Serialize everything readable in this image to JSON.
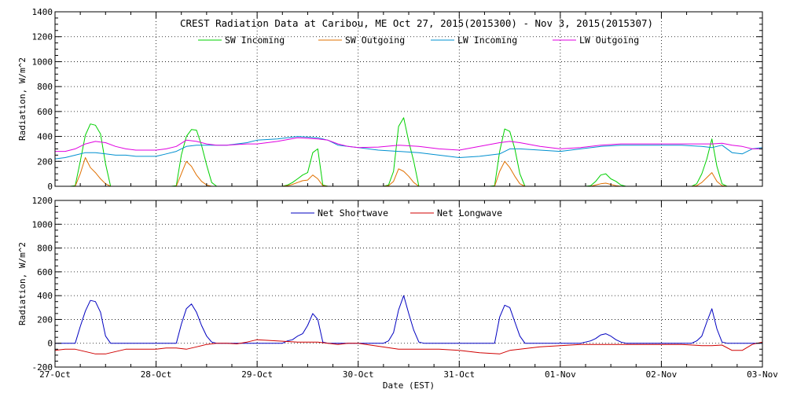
{
  "chart_data": [
    {
      "type": "line",
      "title": "CREST Radiation Data at Caribou, ME   Oct 27, 2015(2015300) - Nov  3, 2015(2015307)",
      "xlabel": "",
      "ylabel": "Radiation, W/m^2",
      "ylim": [
        0,
        1400
      ],
      "yticks": [
        "0",
        "200",
        "400",
        "600",
        "800",
        "1000",
        "1200",
        "1400"
      ],
      "xlim": [
        "27-Oct",
        "03-Nov"
      ],
      "grid": true,
      "legend_position": "top",
      "series": [
        {
          "name": "SW Incoming",
          "color": "#00d000",
          "x": [
            0.0,
            0.1,
            0.15,
            0.2,
            0.25,
            0.3,
            0.35,
            0.4,
            0.45,
            0.5,
            0.55,
            0.6,
            0.65,
            0.7,
            1.0,
            1.1,
            1.15,
            1.2,
            1.25,
            1.3,
            1.35,
            1.4,
            1.45,
            1.5,
            1.55,
            1.6,
            1.65,
            1.7,
            2.0,
            2.2,
            2.25,
            2.3,
            2.35,
            2.4,
            2.45,
            2.5,
            2.55,
            2.6,
            2.65,
            2.7,
            3.0,
            3.2,
            3.25,
            3.3,
            3.35,
            3.4,
            3.45,
            3.5,
            3.55,
            3.6,
            3.65,
            3.7,
            4.0,
            4.2,
            4.25,
            4.3,
            4.35,
            4.4,
            4.45,
            4.5,
            4.55,
            4.6,
            4.65,
            4.7,
            5.0,
            5.2,
            5.25,
            5.3,
            5.35,
            5.4,
            5.45,
            5.5,
            5.55,
            5.6,
            5.65,
            5.7,
            6.0,
            6.2,
            6.25,
            6.3,
            6.35,
            6.4,
            6.45,
            6.5,
            6.55,
            6.6,
            6.65,
            6.7,
            7.0
          ],
          "values": [
            0,
            0,
            0,
            5,
            200,
            410,
            500,
            490,
            420,
            180,
            0,
            0,
            0,
            0,
            0,
            0,
            0,
            5,
            250,
            400,
            455,
            450,
            330,
            170,
            30,
            0,
            0,
            0,
            0,
            0,
            0,
            10,
            30,
            60,
            90,
            110,
            270,
            300,
            10,
            0,
            0,
            0,
            0,
            10,
            120,
            480,
            550,
            360,
            200,
            0,
            0,
            0,
            0,
            0,
            0,
            0,
            5,
            280,
            460,
            440,
            300,
            100,
            0,
            0,
            0,
            0,
            0,
            5,
            40,
            90,
            100,
            60,
            40,
            10,
            0,
            0,
            0,
            0,
            0,
            0,
            20,
            100,
            220,
            380,
            160,
            20,
            0,
            0,
            0
          ]
        },
        {
          "name": "SW Outgoing",
          "color": "#e07000",
          "x": [
            0.0,
            0.1,
            0.15,
            0.2,
            0.25,
            0.3,
            0.35,
            0.4,
            0.45,
            0.5,
            0.55,
            0.6,
            0.65,
            0.7,
            1.0,
            1.1,
            1.15,
            1.2,
            1.25,
            1.3,
            1.35,
            1.4,
            1.45,
            1.5,
            1.55,
            1.6,
            1.65,
            1.7,
            2.0,
            2.2,
            2.25,
            2.3,
            2.35,
            2.4,
            2.45,
            2.5,
            2.55,
            2.6,
            2.65,
            2.7,
            3.0,
            3.2,
            3.25,
            3.3,
            3.35,
            3.4,
            3.45,
            3.5,
            3.55,
            3.6,
            3.65,
            3.7,
            4.0,
            4.2,
            4.25,
            4.3,
            4.35,
            4.4,
            4.45,
            4.5,
            4.55,
            4.6,
            4.65,
            4.7,
            5.0,
            5.2,
            5.25,
            5.3,
            5.35,
            5.4,
            5.45,
            5.5,
            5.55,
            5.6,
            5.65,
            5.7,
            6.0,
            6.2,
            6.25,
            6.3,
            6.35,
            6.4,
            6.45,
            6.5,
            6.55,
            6.6,
            6.65,
            6.7,
            7.0
          ],
          "values": [
            0,
            0,
            0,
            0,
            100,
            230,
            150,
            110,
            60,
            20,
            0,
            0,
            0,
            0,
            0,
            0,
            0,
            0,
            100,
            200,
            160,
            90,
            40,
            10,
            0,
            0,
            0,
            0,
            0,
            0,
            0,
            5,
            15,
            30,
            45,
            50,
            90,
            60,
            5,
            0,
            0,
            0,
            0,
            5,
            40,
            140,
            120,
            80,
            30,
            0,
            0,
            0,
            0,
            0,
            0,
            0,
            0,
            120,
            200,
            150,
            80,
            20,
            0,
            0,
            0,
            0,
            0,
            0,
            10,
            20,
            25,
            15,
            5,
            0,
            0,
            0,
            0,
            0,
            0,
            0,
            5,
            30,
            70,
            110,
            40,
            5,
            0,
            0,
            0
          ]
        },
        {
          "name": "LW Incoming",
          "color": "#0090d0",
          "x": [
            0.0,
            0.1,
            0.2,
            0.3,
            0.4,
            0.5,
            0.6,
            0.7,
            0.8,
            0.9,
            1.0,
            1.1,
            1.2,
            1.3,
            1.4,
            1.5,
            1.6,
            1.7,
            1.8,
            1.9,
            2.0,
            2.2,
            2.4,
            2.6,
            2.7,
            2.8,
            2.9,
            3.0,
            3.2,
            3.4,
            3.6,
            3.8,
            4.0,
            4.2,
            4.4,
            4.5,
            4.6,
            4.8,
            5.0,
            5.2,
            5.4,
            5.6,
            5.8,
            6.0,
            6.2,
            6.4,
            6.5,
            6.6,
            6.7,
            6.8,
            6.9,
            7.0
          ],
          "values": [
            220,
            230,
            250,
            270,
            270,
            260,
            250,
            250,
            240,
            240,
            240,
            260,
            280,
            320,
            330,
            330,
            330,
            330,
            340,
            350,
            370,
            380,
            400,
            390,
            370,
            330,
            320,
            310,
            290,
            280,
            270,
            250,
            230,
            240,
            260,
            300,
            300,
            290,
            280,
            300,
            320,
            330,
            330,
            330,
            330,
            320,
            310,
            330,
            270,
            260,
            300,
            310
          ]
        },
        {
          "name": "LW Outgoing",
          "color": "#e000e0",
          "x": [
            0.0,
            0.1,
            0.2,
            0.3,
            0.4,
            0.5,
            0.6,
            0.7,
            0.8,
            0.9,
            1.0,
            1.1,
            1.2,
            1.3,
            1.4,
            1.5,
            1.6,
            1.7,
            1.8,
            1.9,
            2.0,
            2.2,
            2.4,
            2.6,
            2.7,
            2.8,
            2.9,
            3.0,
            3.2,
            3.4,
            3.6,
            3.8,
            4.0,
            4.2,
            4.4,
            4.5,
            4.6,
            4.8,
            5.0,
            5.2,
            5.4,
            5.6,
            5.8,
            6.0,
            6.2,
            6.4,
            6.5,
            6.6,
            6.7,
            6.8,
            6.9,
            7.0
          ],
          "values": [
            280,
            280,
            300,
            340,
            360,
            350,
            320,
            300,
            290,
            290,
            290,
            300,
            320,
            370,
            360,
            340,
            330,
            330,
            335,
            340,
            340,
            360,
            390,
            380,
            370,
            340,
            320,
            310,
            315,
            330,
            320,
            300,
            290,
            320,
            350,
            360,
            350,
            320,
            300,
            310,
            330,
            340,
            340,
            340,
            340,
            340,
            340,
            345,
            330,
            320,
            300,
            300
          ]
        }
      ]
    },
    {
      "type": "line",
      "title": "",
      "xlabel": "Date (EST)",
      "ylabel": "Radiation, W/m^2",
      "ylim": [
        -200,
        1200
      ],
      "yticks": [
        "-200",
        "0",
        "200",
        "400",
        "600",
        "800",
        "1000",
        "1200"
      ],
      "xticks": [
        "27-Oct",
        "28-Oct",
        "29-Oct",
        "30-Oct",
        "31-Oct",
        "01-Nov",
        "02-Nov",
        "03-Nov"
      ],
      "grid": true,
      "legend_position": "top",
      "series": [
        {
          "name": "Net Shortwave",
          "color": "#0000c0",
          "x": [
            0.0,
            0.1,
            0.15,
            0.2,
            0.25,
            0.3,
            0.35,
            0.4,
            0.45,
            0.5,
            0.55,
            0.6,
            0.65,
            0.7,
            1.0,
            1.1,
            1.15,
            1.2,
            1.25,
            1.3,
            1.35,
            1.4,
            1.45,
            1.5,
            1.55,
            1.6,
            1.65,
            1.7,
            2.0,
            2.2,
            2.25,
            2.3,
            2.35,
            2.4,
            2.45,
            2.5,
            2.55,
            2.6,
            2.65,
            2.7,
            3.0,
            3.2,
            3.25,
            3.3,
            3.35,
            3.4,
            3.45,
            3.5,
            3.55,
            3.6,
            3.65,
            3.7,
            4.0,
            4.2,
            4.25,
            4.3,
            4.35,
            4.4,
            4.45,
            4.5,
            4.55,
            4.6,
            4.65,
            4.7,
            5.0,
            5.2,
            5.25,
            5.3,
            5.35,
            5.4,
            5.45,
            5.5,
            5.55,
            5.6,
            5.65,
            5.7,
            6.0,
            6.2,
            6.25,
            6.3,
            6.35,
            6.4,
            6.45,
            6.5,
            6.55,
            6.6,
            6.65,
            6.7,
            7.0
          ],
          "values": [
            0,
            0,
            0,
            0,
            140,
            270,
            360,
            350,
            260,
            60,
            0,
            0,
            0,
            0,
            0,
            0,
            0,
            0,
            160,
            290,
            330,
            260,
            150,
            60,
            10,
            0,
            0,
            0,
            0,
            0,
            0,
            20,
            30,
            60,
            80,
            150,
            250,
            200,
            10,
            0,
            0,
            0,
            0,
            20,
            90,
            280,
            400,
            250,
            110,
            10,
            0,
            0,
            0,
            0,
            0,
            0,
            0,
            220,
            320,
            300,
            180,
            60,
            0,
            0,
            0,
            0,
            10,
            20,
            40,
            70,
            80,
            60,
            30,
            10,
            0,
            0,
            0,
            0,
            0,
            0,
            20,
            60,
            180,
            290,
            120,
            10,
            0,
            0,
            0
          ]
        },
        {
          "name": "Net Longwave",
          "color": "#d00000",
          "x": [
            0.0,
            0.1,
            0.2,
            0.3,
            0.4,
            0.5,
            0.6,
            0.7,
            0.8,
            0.9,
            1.0,
            1.1,
            1.2,
            1.3,
            1.4,
            1.5,
            1.6,
            1.7,
            1.8,
            1.9,
            2.0,
            2.2,
            2.4,
            2.6,
            2.7,
            2.8,
            2.9,
            3.0,
            3.2,
            3.4,
            3.6,
            3.8,
            4.0,
            4.2,
            4.4,
            4.5,
            4.6,
            4.8,
            5.0,
            5.2,
            5.4,
            5.6,
            5.8,
            6.0,
            6.2,
            6.4,
            6.5,
            6.6,
            6.7,
            6.8,
            6.9,
            7.0
          ],
          "values": [
            -60,
            -50,
            -50,
            -70,
            -90,
            -90,
            -70,
            -50,
            -50,
            -50,
            -50,
            -40,
            -40,
            -50,
            -30,
            -10,
            0,
            0,
            -5,
            10,
            30,
            20,
            10,
            10,
            0,
            -10,
            0,
            0,
            -25,
            -50,
            -50,
            -50,
            -60,
            -80,
            -90,
            -60,
            -50,
            -30,
            -20,
            -10,
            -10,
            -10,
            -10,
            -10,
            -10,
            -20,
            -20,
            -15,
            -60,
            -60,
            -10,
            10
          ]
        }
      ]
    }
  ]
}
